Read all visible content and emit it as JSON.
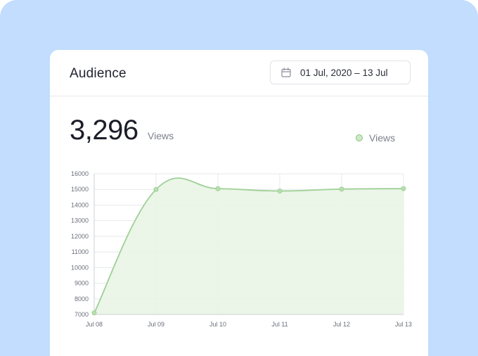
{
  "card": {
    "title": "Audience",
    "date_range": "01 Jul, 2020 – 13 Jul",
    "metric_value": "3,296",
    "metric_unit": "Views",
    "legend_label": "Views"
  },
  "colors": {
    "line": "#9fd096",
    "fill": "#e9f4e6",
    "point": "#b8dfb0",
    "grid": "#e6e8ec"
  },
  "icons": {
    "date_picker": "calendar-icon"
  },
  "chart_data": {
    "type": "area",
    "categories": [
      "Jul 08",
      "Jul 09",
      "Jul 10",
      "Jul 11",
      "Jul 12",
      "Jul 13"
    ],
    "series": [
      {
        "name": "Views",
        "values": [
          7100,
          15000,
          15050,
          14900,
          15020,
          15050
        ]
      }
    ],
    "yticks": [
      7000,
      8000,
      9000,
      10000,
      11000,
      12000,
      13000,
      14000,
      15000,
      16000
    ],
    "ylim": [
      7000,
      16000
    ],
    "grid": true,
    "legend": "top-right"
  }
}
